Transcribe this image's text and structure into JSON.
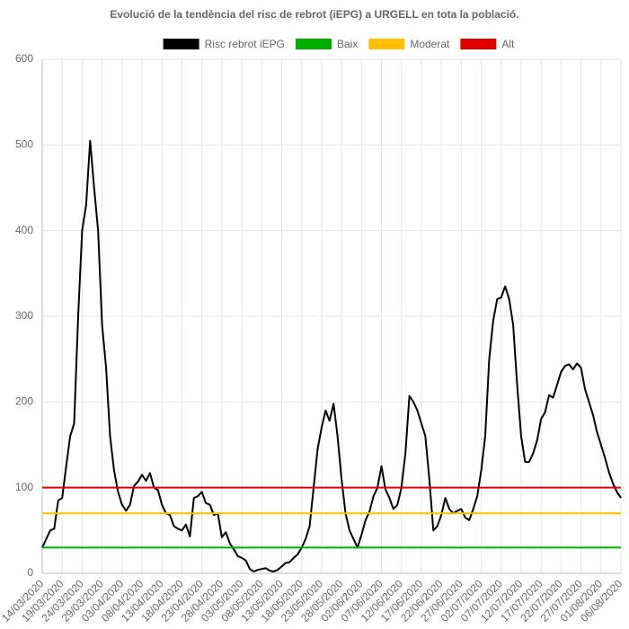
{
  "chart_data": {
    "type": "line",
    "title": "Evolució de la tendència del risc de rebrot (iEPG) a URGELL en tota la població.",
    "categories": [
      "14/03/2020",
      null,
      null,
      null,
      null,
      "19/03/2020",
      null,
      null,
      null,
      null,
      "24/03/2020",
      null,
      null,
      null,
      null,
      "29/03/2020",
      null,
      null,
      null,
      null,
      "03/04/2020",
      null,
      null,
      null,
      null,
      "08/04/2020",
      null,
      null,
      null,
      null,
      "13/04/2020",
      null,
      null,
      null,
      null,
      "18/04/2020",
      null,
      null,
      null,
      null,
      "23/04/2020",
      null,
      null,
      null,
      null,
      "28/04/2020",
      null,
      null,
      null,
      null,
      "03/05/2020",
      null,
      null,
      null,
      null,
      "08/05/2020",
      null,
      null,
      null,
      null,
      "13/05/2020",
      null,
      null,
      null,
      null,
      "18/05/2020",
      null,
      null,
      null,
      null,
      "23/05/2020",
      null,
      null,
      null,
      null,
      "28/05/2020",
      null,
      null,
      null,
      null,
      "02/06/2020",
      null,
      null,
      null,
      null,
      "07/06/2020",
      null,
      null,
      null,
      null,
      "12/06/2020",
      null,
      null,
      null,
      null,
      "17/06/2020",
      null,
      null,
      null,
      null,
      "22/06/2020",
      null,
      null,
      null,
      null,
      "27/06/2020",
      null,
      null,
      null,
      null,
      "02/07/2020",
      null,
      null,
      null,
      null,
      "07/07/2020",
      null,
      null,
      null,
      null,
      "12/07/2020",
      null,
      null,
      null,
      null,
      "17/07/2020",
      null,
      null,
      null,
      null,
      "22/07/2020",
      null,
      null,
      null,
      null,
      "27/07/2020",
      null,
      null,
      null,
      null,
      "01/08/2020",
      null,
      null,
      null,
      null,
      "06/08/2020"
    ],
    "series": [
      {
        "name": "Risc rebrot iEPG",
        "color": "#000000",
        "values": [
          30,
          40,
          50,
          52,
          85,
          88,
          125,
          160,
          175,
          300,
          400,
          430,
          505,
          450,
          400,
          290,
          240,
          160,
          120,
          95,
          80,
          73,
          80,
          102,
          107,
          115,
          108,
          117,
          100,
          97,
          80,
          70,
          68,
          55,
          52,
          50,
          57,
          43,
          88,
          90,
          95,
          82,
          80,
          68,
          70,
          42,
          48,
          35,
          28,
          20,
          18,
          15,
          5,
          2,
          4,
          5,
          6,
          3,
          2,
          4,
          8,
          12,
          13,
          18,
          22,
          30,
          40,
          55,
          100,
          145,
          170,
          190,
          178,
          198,
          160,
          110,
          70,
          50,
          40,
          30,
          45,
          62,
          72,
          90,
          100,
          125,
          98,
          88,
          75,
          80,
          100,
          140,
          207,
          200,
          190,
          175,
          160,
          110,
          50,
          55,
          68,
          88,
          75,
          70,
          73,
          75,
          65,
          62,
          75,
          90,
          120,
          160,
          250,
          295,
          320,
          322,
          335,
          320,
          290,
          220,
          160,
          130,
          130,
          140,
          155,
          180,
          188,
          208,
          205,
          220,
          235,
          242,
          244,
          238,
          245,
          240,
          215,
          200,
          185,
          165,
          150,
          135,
          118,
          105,
          95,
          88
        ]
      },
      {
        "name": "Baix",
        "color": "#00b000",
        "value": 30
      },
      {
        "name": "Moderat",
        "color": "#ffbf00",
        "value": 70
      },
      {
        "name": "Alt",
        "color": "#e00000",
        "value": 100
      }
    ],
    "ylim": [
      0,
      600
    ],
    "yticks": [
      0,
      100,
      200,
      300,
      400,
      500,
      600
    ],
    "grid": true
  }
}
